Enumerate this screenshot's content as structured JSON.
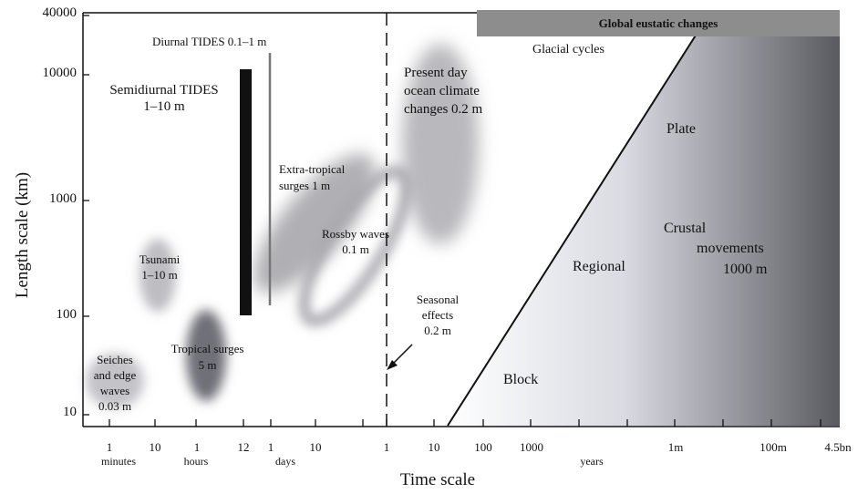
{
  "axes": {
    "xtitle": "Time scale",
    "ytitle": "Length scale (km)",
    "yticks": [
      "40000",
      "10000",
      "1000",
      "100",
      "10"
    ],
    "xticks": [
      "1",
      "10",
      "1",
      "12",
      "1",
      "10",
      "1",
      "10",
      "100",
      "1000",
      "1m",
      "100m",
      "4.5bn"
    ],
    "xunits": [
      "minutes",
      "hours",
      "days",
      "years"
    ]
  },
  "banner": "Global eustatic changes",
  "labels": {
    "glacial": "Glacial cycles",
    "diurnal": "Diurnal TIDES 0.1–1 m",
    "semi_1": "Semidiurnal TIDES",
    "semi_2": "1–10 m",
    "present_1": "Present day",
    "present_2": "ocean climate",
    "present_3": "changes  0.2 m",
    "extra_1": "Extra-tropical",
    "extra_2": "surges 1 m",
    "rossby_1": "Rossby waves",
    "rossby_2": "0.1 m",
    "tsunami_1": "Tsunami",
    "tsunami_2": "1–10 m",
    "tropical_1": "Tropical surges",
    "tropical_2": "5 m",
    "seiches_1": "Seiches",
    "seiches_2": "and edge",
    "seiches_3": "waves",
    "seiches_4": "0.03 m",
    "seasonal_1": "Seasonal",
    "seasonal_2": "effects",
    "seasonal_3": "0.2 m",
    "plate": "Plate",
    "regional": "Regional",
    "crustal_1": "Crustal",
    "crustal_2": "movements",
    "crustal_3": "1000 m",
    "block": "Block"
  }
}
